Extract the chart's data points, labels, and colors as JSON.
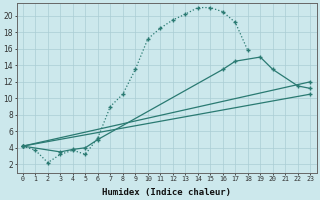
{
  "xlabel": "Humidex (Indice chaleur)",
  "background_color": "#cce8ec",
  "grid_color": "#aacdd4",
  "line_color": "#2a7a72",
  "xlim": [
    -0.5,
    23.5
  ],
  "ylim": [
    1,
    21.5
  ],
  "xticks": [
    0,
    1,
    2,
    3,
    4,
    5,
    6,
    7,
    8,
    9,
    10,
    11,
    12,
    13,
    14,
    15,
    16,
    17,
    18,
    19,
    20,
    21,
    22,
    23
  ],
  "yticks": [
    2,
    4,
    6,
    8,
    10,
    12,
    14,
    16,
    18,
    20
  ],
  "curve_dotted": {
    "x": [
      0,
      1,
      2,
      3,
      4,
      5,
      6,
      7,
      8,
      9,
      10,
      11,
      12,
      13,
      14,
      15,
      16,
      17,
      18
    ],
    "y": [
      4.2,
      3.7,
      2.2,
      3.2,
      3.7,
      3.2,
      5.2,
      9.0,
      10.5,
      13.5,
      17.2,
      18.5,
      19.5,
      20.2,
      21.0,
      21.0,
      20.5,
      19.2,
      15.8
    ]
  },
  "curve_solid_upper": {
    "x": [
      0,
      3,
      4,
      5,
      6,
      16,
      17,
      19,
      20,
      22,
      23
    ],
    "y": [
      4.2,
      3.5,
      3.8,
      4.0,
      5.0,
      13.5,
      14.5,
      15.0,
      13.5,
      11.5,
      11.2
    ]
  },
  "line_mid": {
    "x": [
      0,
      23
    ],
    "y": [
      4.2,
      12.0
    ]
  },
  "line_low": {
    "x": [
      0,
      23
    ],
    "y": [
      4.2,
      10.5
    ]
  }
}
